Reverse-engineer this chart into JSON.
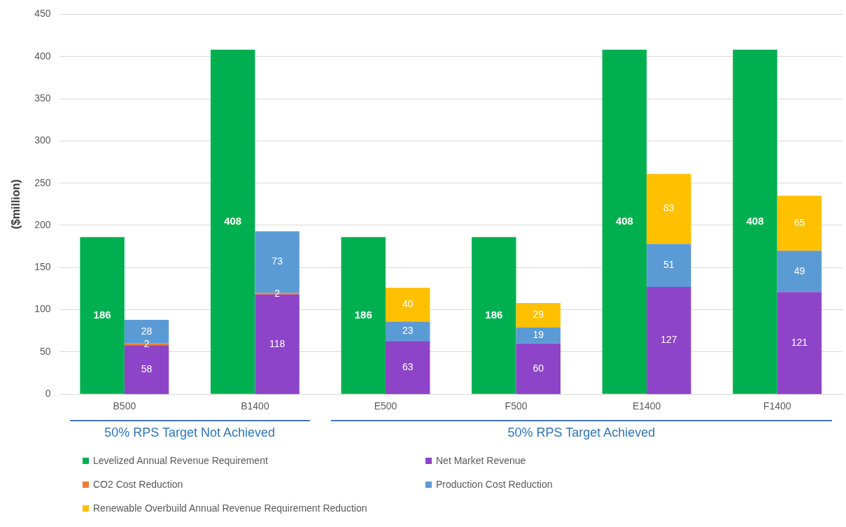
{
  "chart_data": [
    {
      "type": "bar",
      "ylabel": "($million)",
      "categories": [
        "B500",
        "B1400",
        "E500",
        "F500",
        "E1400",
        "F1400"
      ],
      "ylim": [
        0,
        450
      ],
      "yticks": [
        0,
        50,
        100,
        150,
        200,
        250,
        300,
        350,
        400,
        450
      ],
      "grid": "y",
      "legend": "bottom",
      "data_labels": true,
      "series": [
        {
          "name": "Levelized Annual Revenue Requirement",
          "color": "#00b050",
          "values": [
            186,
            408,
            186,
            186,
            408,
            408
          ]
        }
      ],
      "annotations": [
        "50% RPS Target Not Achieved",
        "50% RPS Target Achieved"
      ]
    },
    {
      "type": "bar",
      "categories": [
        null,
        null,
        null,
        null,
        null,
        null
      ],
      "stacked": true,
      "ylim": [
        0,
        450
      ],
      "tick_labels": false,
      "legend": "bottom",
      "data_labels": true,
      "series": [
        {
          "name": "Net Market Revenue",
          "color": "#8e44c8",
          "values": [
            58,
            118,
            63,
            60,
            127,
            121
          ]
        },
        {
          "name": "CO2 Cost Reduction",
          "color": "#ed7d31",
          "values": [
            2,
            2,
            null,
            null,
            null,
            null
          ]
        },
        {
          "name": "Production Cost Reduction",
          "color": "#5b9bd5",
          "values": [
            28,
            73,
            23,
            19,
            51,
            49
          ]
        },
        {
          "name": "Renewable Overbuild Annual Revenue Requirement Reduction",
          "color": "#ffc000",
          "values": [
            null,
            null,
            40,
            29,
            83,
            65
          ]
        }
      ]
    }
  ]
}
